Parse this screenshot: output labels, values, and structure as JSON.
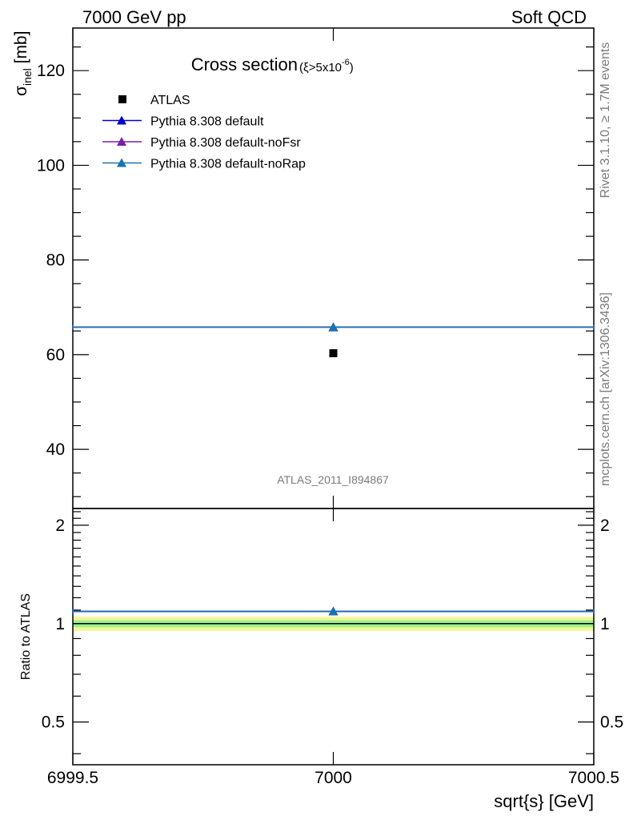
{
  "header": {
    "left": "7000 GeV pp",
    "right": "Soft QCD"
  },
  "side_labels": {
    "rivet": "Rivet 3.1.10, ≥ 1.7M events",
    "source": "mcplots.cern.ch [arXiv:1306.3436]"
  },
  "chart_data": [
    {
      "type": "scatter",
      "title": "Cross section",
      "title_condition": {
        "base": "(ξ>5x10",
        "exponent": "-6",
        "close": ")"
      },
      "analysis_id": "ATLAS_2011_I894867",
      "ylabel": {
        "symbol": "σ",
        "subscript": "inel",
        "unit": "[mb]"
      },
      "xlim": [
        6999.5,
        7000.5
      ],
      "ylim": [
        27.5,
        129
      ],
      "y_major_ticks": [
        40,
        60,
        80,
        100,
        120
      ],
      "y_tick_labels": [
        "40",
        "60",
        "80",
        "100",
        "120"
      ],
      "y_minor_step": 5,
      "legend_position": "top-left",
      "legend": [
        {
          "label": "ATLAS",
          "marker": "square",
          "color": "#000000"
        },
        {
          "label": "Pythia 8.308 default",
          "marker": "triangle",
          "color": "#0000cc"
        },
        {
          "label": "Pythia 8.308 default-noFsr",
          "marker": "triangle",
          "color": "#7a1fa8"
        },
        {
          "label": "Pythia 8.308 default-noRap",
          "marker": "triangle",
          "color": "#1a72b0"
        }
      ],
      "series": [
        {
          "name": "ATLAS",
          "x": [
            7000
          ],
          "y": [
            60.3
          ],
          "style": "point"
        },
        {
          "name": "Pythia 8.308 default",
          "x": [
            7000
          ],
          "y": [
            65.8
          ],
          "xerr": [
            0.5
          ],
          "style": "hline"
        },
        {
          "name": "Pythia 8.308 default-noFsr",
          "x": [
            7000
          ],
          "y": [
            65.8
          ],
          "xerr": [
            0.5
          ],
          "style": "hline"
        },
        {
          "name": "Pythia 8.308 default-noRap",
          "x": [
            7000
          ],
          "y": [
            65.8
          ],
          "xerr": [
            0.5
          ],
          "style": "hline"
        }
      ]
    },
    {
      "type": "line",
      "ylabel": "Ratio to ATLAS",
      "xlabel": "sqrt{s} [GeV]",
      "xlim": [
        6999.5,
        7000.5
      ],
      "ylim": [
        0.37,
        2.25
      ],
      "x_ticks": [
        6999.5,
        7000,
        7000.5
      ],
      "x_tick_labels": [
        "6999.5",
        "7000",
        "7000.5"
      ],
      "y_ticks": [
        0.5,
        1,
        2
      ],
      "y_tick_labels": [
        "0.5",
        "1",
        "2"
      ],
      "reference_line": 1,
      "uncertainty_bands": [
        {
          "name": "outer",
          "low": 0.95,
          "high": 1.05,
          "color": "#f3f797"
        },
        {
          "name": "inner",
          "low": 0.975,
          "high": 1.025,
          "color": "#9ef08f"
        }
      ],
      "series": [
        {
          "name": "Pythia 8.308 default",
          "x": [
            7000
          ],
          "y": [
            1.09
          ],
          "xerr": [
            0.5
          ],
          "color": "#0000cc"
        },
        {
          "name": "Pythia 8.308 default-noFsr",
          "x": [
            7000
          ],
          "y": [
            1.09
          ],
          "xerr": [
            0.5
          ],
          "color": "#7a1fa8"
        },
        {
          "name": "Pythia 8.308 default-noRap",
          "x": [
            7000
          ],
          "y": [
            1.09
          ],
          "xerr": [
            0.5
          ],
          "color": "#1a72b0"
        }
      ]
    }
  ]
}
